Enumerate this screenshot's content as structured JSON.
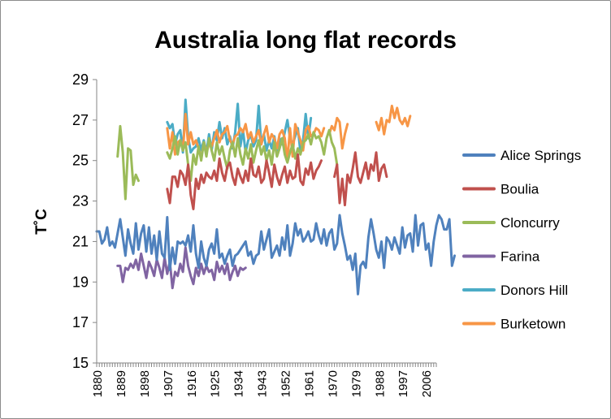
{
  "chart_data": {
    "type": "line",
    "title": "Australia long flat records",
    "xlabel": "",
    "ylabel": "T˚C",
    "ylim": [
      15,
      29
    ],
    "yticks": [
      "15",
      "17",
      "19",
      "21",
      "23",
      "25",
      "27",
      "29"
    ],
    "xlim": [
      1880,
      2010
    ],
    "xticks": [
      "1880",
      "1889",
      "1898",
      "1907",
      "1916",
      "1925",
      "1934",
      "1943",
      "1952",
      "1961",
      "1970",
      "1979",
      "1988",
      "1997",
      "2006"
    ],
    "grid": false,
    "legend_position": "right",
    "series": [
      {
        "name": "Alice Springs",
        "color": "#4f81bd",
        "start": 1880,
        "values": [
          21.5,
          21.5,
          20.9,
          21.1,
          21.7,
          20.8,
          21.0,
          20.7,
          21.4,
          22.1,
          21.2,
          20.3,
          21.6,
          20.9,
          20.4,
          21.9,
          20.6,
          21.4,
          21.8,
          20.5,
          21.7,
          20.4,
          21.3,
          20.1,
          21.5,
          20.4,
          20.2,
          22.2,
          19.6,
          20.7,
          19.9,
          21.0,
          20.9,
          21.0,
          20.8,
          21.3,
          20.5,
          21.8,
          20.4,
          19.7,
          21.0,
          20.2,
          19.8,
          20.6,
          20.9,
          20.4,
          21.6,
          20.2,
          20.4,
          19.9,
          20.3,
          20.6,
          19.8,
          20.3,
          20.4,
          20.6,
          20.8,
          21.0,
          20.3,
          20.5,
          19.9,
          20.3,
          20.4,
          21.5,
          20.6,
          21.1,
          21.6,
          20.2,
          20.5,
          20.8,
          20.3,
          21.2,
          20.6,
          21.8,
          20.3,
          20.9,
          21.9,
          21.3,
          21.6,
          21.0,
          21.2,
          21.5,
          21.0,
          21.1,
          21.9,
          21.3,
          20.9,
          21.6,
          20.8,
          21.4,
          21.6,
          20.6,
          20.9,
          22.3,
          21.4,
          20.8,
          20.1,
          20.3,
          19.6,
          20.4,
          18.4,
          19.8,
          20.0,
          19.7,
          21.2,
          22.1,
          21.4,
          20.6,
          20.2,
          21.0,
          19.7,
          21.2,
          21.0,
          20.6,
          21.2,
          20.8,
          20.4,
          21.7,
          20.7,
          21.3,
          21.4,
          20.5,
          22.3,
          20.8,
          21.8,
          21.9,
          20.6,
          20.9,
          19.8,
          21.0,
          21.8,
          22.3,
          22.1,
          21.6,
          21.6,
          22.1,
          19.8,
          20.3
        ]
      },
      {
        "name": "Boulia",
        "color": "#c0504d",
        "start": 1907,
        "values": [
          23.6,
          22.9,
          24.2,
          24.2,
          23.7,
          24.5,
          24.3,
          23.8,
          24.8,
          23.3,
          22.6,
          24.1,
          23.6,
          24.3,
          23.9,
          24.4,
          24.2,
          24.1,
          24.5,
          24.0,
          25.1,
          24.4,
          24.0,
          24.7,
          24.9,
          24.2,
          23.8,
          24.6,
          24.2,
          23.9,
          24.5,
          24.0,
          25.1,
          24.3,
          24.2,
          24.7,
          23.9,
          24.1,
          25.0,
          24.4,
          23.7,
          24.8,
          24.2,
          23.8,
          24.3,
          24.7,
          23.9,
          24.5,
          24.1,
          24.2,
          25.3,
          24.0,
          23.8,
          24.6,
          24.3,
          24.9,
          24.1,
          24.5,
          24.7,
          25.0,
          null,
          null,
          null,
          null,
          24.2,
          24.8,
          22.9,
          24.1,
          22.8,
          24.3,
          23.9,
          24.6,
          25.4,
          24.2,
          23.9,
          24.4,
          24.9,
          24.1,
          24.8,
          24.5,
          25.4,
          24.0,
          24.6,
          24.8,
          24.2
        ]
      },
      {
        "name": "Cloncurry",
        "color": "#9bbb59",
        "start": 1888,
        "values": [
          25.2,
          26.7,
          25.4,
          23.1,
          25.6,
          25.5,
          23.8,
          24.3,
          24.0,
          null,
          null,
          null,
          null,
          null,
          null,
          null,
          null,
          null,
          null,
          25.4,
          25.1,
          25.6,
          26.2,
          25.3,
          26.0,
          25.5,
          25.9,
          24.8,
          24.0,
          25.3,
          24.8,
          25.7,
          25.0,
          25.9,
          25.2,
          26.1,
          25.5,
          25.0,
          25.9,
          25.3,
          25.7,
          25.1,
          24.6,
          25.5,
          25.9,
          25.2,
          26.1,
          25.3,
          24.8,
          25.6,
          25.1,
          25.8,
          24.9,
          25.5,
          26.0,
          25.3,
          25.7,
          25.0,
          25.5,
          24.8,
          25.9,
          25.2,
          25.6,
          26.1,
          25.3,
          24.9,
          25.4,
          25.8,
          25.1,
          25.6,
          25.3,
          25.9,
          26.0,
          26.3,
          25.8,
          26.4,
          26.1,
          26.2,
          25.9,
          25.3,
          26.1,
          26.5,
          25.9,
          25.6,
          24.8
        ]
      },
      {
        "name": "Farina",
        "color": "#8064a2",
        "start": 1888,
        "values": [
          19.8,
          19.8,
          19.0,
          19.7,
          19.6,
          19.9,
          19.7,
          20.1,
          19.6,
          20.4,
          19.8,
          19.2,
          20.0,
          19.7,
          19.3,
          20.1,
          19.7,
          19.2,
          20.2,
          19.4,
          20.0,
          18.7,
          19.5,
          19.3,
          19.9,
          19.5,
          20.7,
          19.8,
          19.3,
          18.9,
          19.7,
          19.3,
          19.9,
          19.4,
          19.8,
          19.5,
          19.6,
          19.1,
          20.0,
          19.5,
          19.8,
          19.4,
          19.9,
          19.1,
          19.5,
          19.8,
          19.3,
          19.7,
          19.6,
          19.7
        ]
      },
      {
        "name": "Donors Hill",
        "color": "#4bacc6",
        "start": 1907,
        "values": [
          26.9,
          26.6,
          26.8,
          25.8,
          26.3,
          26.5,
          25.4,
          28.0,
          26.2,
          25.4,
          25.6,
          25.7,
          26.1,
          25.5,
          26.0,
          25.4,
          26.3,
          25.5,
          26.4,
          26.0,
          26.9,
          26.1,
          26.6,
          25.8,
          26.2,
          25.6,
          26.4,
          27.8,
          25.7,
          26.5,
          25.4,
          26.0,
          26.3,
          25.7,
          26.0,
          27.7,
          25.8,
          26.3,
          25.5,
          26.0,
          25.6,
          26.2,
          25.4,
          26.1,
          25.8,
          26.4,
          27.0,
          26.1,
          25.8,
          26.2,
          26.6,
          25.4,
          26.0,
          27.3,
          26.1,
          27.1
        ]
      },
      {
        "name": "Burketown",
        "color": "#f79646",
        "start": 1907,
        "values": [
          26.6,
          25.6,
          26.4,
          25.3,
          25.9,
          26.0,
          25.5,
          27.3,
          25.8,
          26.4,
          25.8,
          26.0,
          25.6,
          25.1,
          25.9,
          25.4,
          25.8,
          25.7,
          26.1,
          26.5,
          25.9,
          26.3,
          26.4,
          26.7,
          26.0,
          25.8,
          26.2,
          26.3,
          26.6,
          26.4,
          26.8,
          26.1,
          26.4,
          25.9,
          26.2,
          26.5,
          25.8,
          26.3,
          26.7,
          25.9,
          26.3,
          26.1,
          25.6,
          26.3,
          26.5,
          26.1,
          25.0,
          26.6,
          25.2,
          26.8,
          26.4,
          26.0,
          25.5,
          26.5,
          26.7,
          26.2,
          26.3,
          26.6,
          26.5,
          26.2,
          26.6,
          null,
          26.3,
          26.7,
          26.5,
          27.1,
          26.9,
          25.6,
          26.3,
          26.8,
          null,
          null,
          null,
          null,
          null,
          null,
          null,
          null,
          null,
          null,
          26.9,
          26.5,
          27.1,
          26.3,
          27.0,
          26.9,
          27.7,
          27.1,
          27.6,
          27.0,
          26.8,
          27.1,
          26.7,
          27.2
        ]
      }
    ]
  }
}
